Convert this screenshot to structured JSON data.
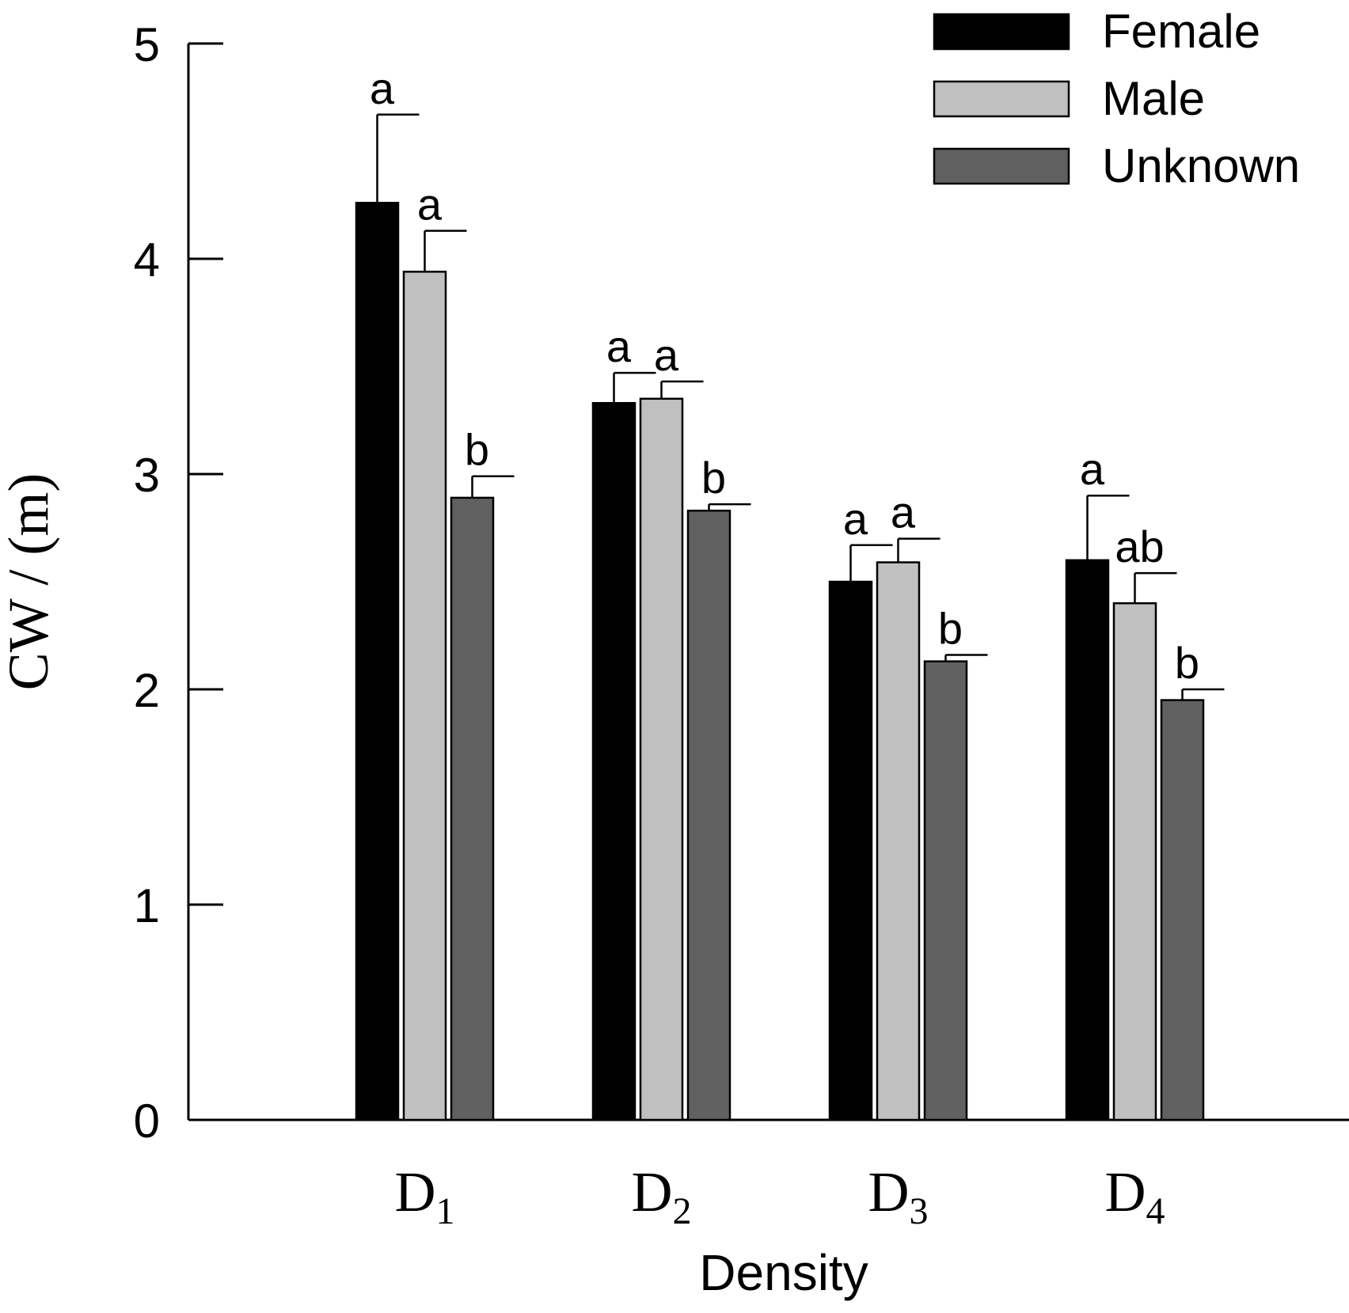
{
  "chart_data": {
    "type": "bar",
    "title": "",
    "xlabel": "Density",
    "ylabel": "CW / (m)",
    "ylim": [
      0,
      5
    ],
    "yticks": [
      "0",
      "1",
      "2",
      "3",
      "4",
      "5"
    ],
    "grid": false,
    "legend_position": "top-right",
    "categories": [
      {
        "main": "D",
        "sub": "1"
      },
      {
        "main": "D",
        "sub": "2"
      },
      {
        "main": "D",
        "sub": "3"
      },
      {
        "main": "D",
        "sub": "4"
      }
    ],
    "series": [
      {
        "name": "Female",
        "color": "#000000",
        "values": [
          4.26,
          3.33,
          2.5,
          2.6
        ],
        "errors": [
          0.41,
          0.14,
          0.17,
          0.3
        ],
        "letters": [
          "a",
          "a",
          "a",
          "a"
        ]
      },
      {
        "name": "Male",
        "color": "#c0c0c0",
        "values": [
          3.94,
          3.35,
          2.59,
          2.4
        ],
        "errors": [
          0.19,
          0.08,
          0.11,
          0.14
        ],
        "letters": [
          "a",
          "a",
          "a",
          "ab"
        ]
      },
      {
        "name": "Unknown",
        "color": "#606060",
        "values": [
          2.89,
          2.83,
          2.13,
          1.95
        ],
        "errors": [
          0.1,
          0.03,
          0.03,
          0.05
        ],
        "letters": [
          "b",
          "b",
          "b",
          "b"
        ]
      }
    ]
  }
}
